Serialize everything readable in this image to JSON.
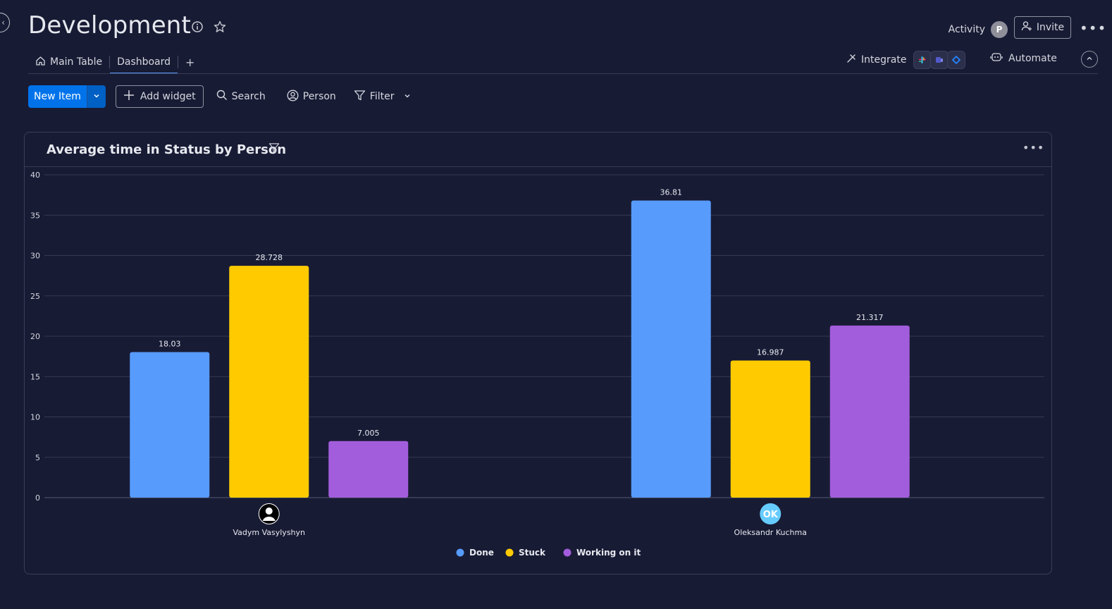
{
  "board": {
    "title": "Development"
  },
  "header": {
    "activity_label": "Activity",
    "activity_avatar": "P",
    "invite_label": "Invite",
    "more_icon": "more-horizontal-icon"
  },
  "tabs": [
    {
      "label": "Main Table",
      "icon": "home-icon",
      "active": false
    },
    {
      "label": "Dashboard",
      "active": true
    }
  ],
  "tab_add": "+",
  "integrate_label": "Integrate",
  "automate_label": "Automate",
  "toolbar": {
    "new_item_label": "New Item",
    "add_widget_label": "Add widget",
    "search_label": "Search",
    "person_label": "Person",
    "filter_label": "Filter"
  },
  "widget": {
    "title": "Average time in Status by Person"
  },
  "colors": {
    "done": "#579bfc",
    "stuck": "#ffcb00",
    "working": "#a25ddc",
    "background": "#181b34",
    "accent": "#0073ea"
  },
  "chart_data": {
    "type": "bar",
    "categories": [
      "Vadym Vasylyshyn",
      "Oleksandr Kuchma"
    ],
    "category_avatars": [
      "person-icon",
      "OK"
    ],
    "series": [
      {
        "name": "Done",
        "values": [
          18.03,
          36.81
        ],
        "color": "#579bfc"
      },
      {
        "name": "Stuck",
        "values": [
          28.728,
          16.987
        ],
        "color": "#ffcb00"
      },
      {
        "name": "Working on it",
        "values": [
          7.005,
          21.317
        ],
        "color": "#a25ddc"
      }
    ],
    "data_labels": [
      [
        "18.03",
        "36.81"
      ],
      [
        "28.728",
        "16.987"
      ],
      [
        "7.005",
        "21.317"
      ]
    ],
    "ylim": [
      0,
      40
    ],
    "yticks": [
      0,
      5,
      10,
      15,
      20,
      25,
      30,
      35,
      40
    ],
    "grid": true,
    "legend_position": "bottom"
  }
}
